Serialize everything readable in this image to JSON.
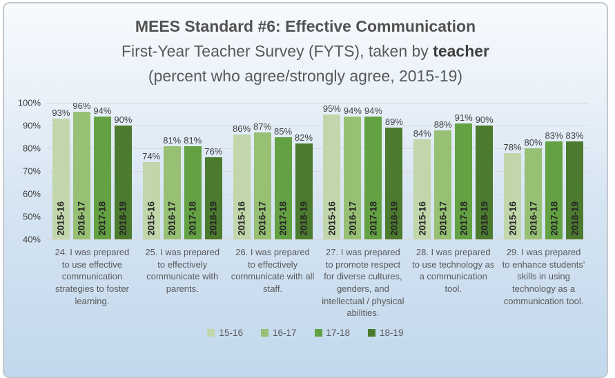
{
  "title": {
    "line1": "MEES Standard #6: Effective Communication",
    "line2_prefix": "First-Year Teacher Survey (FYTS), taken by ",
    "line2_bold": "teacher",
    "line3": "(percent who agree/strongly agree, 2015-19)"
  },
  "chart_data": {
    "type": "bar",
    "categories": [
      "24. I was prepared to use effective communication strategies to foster learning.",
      "25. I was prepared to effectively communicate with parents.",
      "26. I was prepared to effectively communicate with all staff.",
      "27. I was prepared to promote respect for diverse cultures, genders, and intellectual / physical abilities.",
      "28. I was prepared to use technology as a communication tool.",
      "29. I was prepared to enhance students' skills in using technology as a communication tool."
    ],
    "series": [
      {
        "name": "15-16",
        "bar_label": "2015-16",
        "color": "#c2d6ac",
        "values": [
          93,
          74,
          86,
          95,
          84,
          78
        ]
      },
      {
        "name": "16-17",
        "bar_label": "2016-17",
        "color": "#97c074",
        "values": [
          96,
          81,
          87,
          94,
          88,
          80
        ]
      },
      {
        "name": "17-18",
        "bar_label": "2017-18",
        "color": "#63a143",
        "values": [
          94,
          81,
          85,
          94,
          91,
          83
        ]
      },
      {
        "name": "18-19",
        "bar_label": "2018-19",
        "color": "#4c7a2e",
        "values": [
          90,
          76,
          82,
          89,
          90,
          83
        ]
      }
    ],
    "value_suffix": "%",
    "y_ticks": [
      "100%",
      "90%",
      "80%",
      "70%",
      "60%",
      "50%",
      "40%"
    ],
    "ylim": [
      40,
      100
    ],
    "grid": true,
    "legend_position": "bottom",
    "xlabel": "",
    "ylabel": ""
  },
  "colors": {
    "background_top": "#f7fafd",
    "background_bottom": "#c2d8ec",
    "card_border": "#c3c7cd",
    "gridline": "#d9d9d9",
    "title_text": "#595959",
    "axis_text": "#404040",
    "category_text": "#595959",
    "value_label_text": "#404040",
    "bar_year_text": "#262626"
  }
}
